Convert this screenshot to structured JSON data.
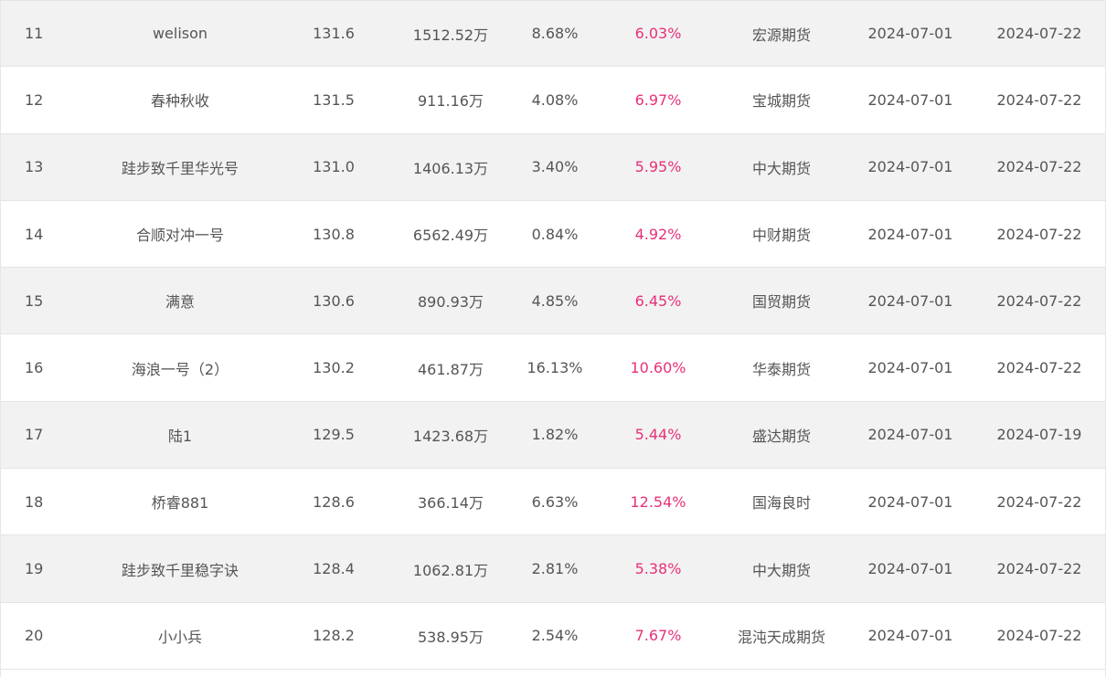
{
  "rows": [
    {
      "rank": "11",
      "name": "welison",
      "score": "131.6",
      "scale": "1512.52万",
      "drawdown": "8.68%",
      "return": "6.03%",
      "broker": "宏源期货",
      "start": "2024-07-01",
      "end": "2024-07-22"
    },
    {
      "rank": "12",
      "name": "春种秋收",
      "score": "131.5",
      "scale": "911.16万",
      "drawdown": "4.08%",
      "return": "6.97%",
      "broker": "宝城期货",
      "start": "2024-07-01",
      "end": "2024-07-22"
    },
    {
      "rank": "13",
      "name": "跬步致千里华光号",
      "score": "131.0",
      "scale": "1406.13万",
      "drawdown": "3.40%",
      "return": "5.95%",
      "broker": "中大期货",
      "start": "2024-07-01",
      "end": "2024-07-22"
    },
    {
      "rank": "14",
      "name": "合顺对冲一号",
      "score": "130.8",
      "scale": "6562.49万",
      "drawdown": "0.84%",
      "return": "4.92%",
      "broker": "中财期货",
      "start": "2024-07-01",
      "end": "2024-07-22"
    },
    {
      "rank": "15",
      "name": "满意",
      "score": "130.6",
      "scale": "890.93万",
      "drawdown": "4.85%",
      "return": "6.45%",
      "broker": "国贸期货",
      "start": "2024-07-01",
      "end": "2024-07-22"
    },
    {
      "rank": "16",
      "name": "海浪一号（2）",
      "score": "130.2",
      "scale": "461.87万",
      "drawdown": "16.13%",
      "return": "10.60%",
      "broker": "华泰期货",
      "start": "2024-07-01",
      "end": "2024-07-22"
    },
    {
      "rank": "17",
      "name": "陆1",
      "score": "129.5",
      "scale": "1423.68万",
      "drawdown": "1.82%",
      "return": "5.44%",
      "broker": "盛达期货",
      "start": "2024-07-01",
      "end": "2024-07-19"
    },
    {
      "rank": "18",
      "name": "桥睿881",
      "score": "128.6",
      "scale": "366.14万",
      "drawdown": "6.63%",
      "return": "12.54%",
      "broker": "国海良时",
      "start": "2024-07-01",
      "end": "2024-07-22"
    },
    {
      "rank": "19",
      "name": "跬步致千里稳字诀",
      "score": "128.4",
      "scale": "1062.81万",
      "drawdown": "2.81%",
      "return": "5.38%",
      "broker": "中大期货",
      "start": "2024-07-01",
      "end": "2024-07-22"
    },
    {
      "rank": "20",
      "name": "小小兵",
      "score": "128.2",
      "scale": "538.95万",
      "drawdown": "2.54%",
      "return": "7.67%",
      "broker": "混沌天成期货",
      "start": "2024-07-01",
      "end": "2024-07-22"
    }
  ],
  "colors": {
    "return_text": "#e8307a",
    "row_alt_bg": "#f2f2f2",
    "text": "#555555"
  }
}
